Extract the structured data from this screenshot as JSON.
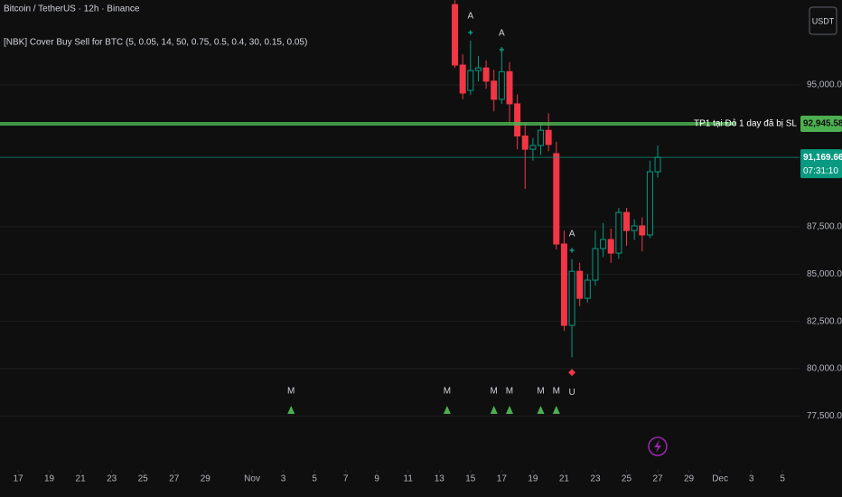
{
  "chart_data": {
    "type": "candlestick",
    "symbol": "Bitcoin / TetherUS · 12h · Binance",
    "indicator": "[NBK] Cover Buy Sell for BTC (5, 0.05, 14, 50, 0.75, 0.5, 0.4, 30, 0.15, 0.05)",
    "currency": "USDT",
    "x": [
      28,
      28.5,
      29,
      29.5,
      30,
      30.5,
      31,
      31.5,
      32,
      32.5,
      33,
      33.5,
      34,
      34.5,
      35,
      35.5,
      36,
      36.5,
      37,
      37.5,
      38,
      38.5,
      39,
      39.5,
      40,
      40.5,
      41
    ],
    "open": [
      99250,
      96050,
      94710,
      95760,
      95900,
      95200,
      94240,
      95700,
      94000,
      92300,
      91600,
      91800,
      92600,
      91370,
      86590,
      82290,
      85150,
      83720,
      84680,
      86350,
      86830,
      86110,
      88260,
      87300,
      87550,
      87070,
      90410
    ],
    "high": [
      99480,
      96620,
      97340,
      96530,
      96300,
      95800,
      97000,
      96200,
      94500,
      93000,
      92200,
      93000,
      93500,
      92000,
      87300,
      85800,
      85600,
      85000,
      87300,
      87700,
      87400,
      88500,
      88500,
      87900,
      88000,
      91000,
      91800
    ],
    "low": [
      95900,
      94240,
      94470,
      95190,
      94800,
      93600,
      94000,
      93000,
      91600,
      89500,
      91000,
      91300,
      91500,
      86300,
      82000,
      80600,
      83300,
      83500,
      84400,
      85900,
      85600,
      85800,
      86500,
      86800,
      86200,
      86900,
      90100
    ],
    "close": [
      96050,
      94570,
      95760,
      95900,
      95200,
      94240,
      95700,
      94000,
      92300,
      91600,
      91800,
      92600,
      91850,
      86590,
      82290,
      85150,
      83720,
      84680,
      86350,
      86830,
      86110,
      88260,
      87300,
      87550,
      87070,
      90410,
      91170
    ],
    "up_color": "#089981",
    "down_color": "#f23645",
    "xlim": [
      -1.16,
      50.09
    ],
    "ylim": [
      74650,
      99490
    ],
    "xticks": [
      {
        "value": 0,
        "label": "17"
      },
      {
        "value": 2,
        "label": "19"
      },
      {
        "value": 4,
        "label": "21"
      },
      {
        "value": 6,
        "label": "23"
      },
      {
        "value": 8,
        "label": "25"
      },
      {
        "value": 10,
        "label": "27"
      },
      {
        "value": 12,
        "label": "29"
      },
      {
        "value": 15,
        "label": "Nov"
      },
      {
        "value": 17,
        "label": "3"
      },
      {
        "value": 19,
        "label": "5"
      },
      {
        "value": 21,
        "label": "7"
      },
      {
        "value": 23,
        "label": "9"
      },
      {
        "value": 25,
        "label": "11"
      },
      {
        "value": 27,
        "label": "13"
      },
      {
        "value": 29,
        "label": "15"
      },
      {
        "value": 31,
        "label": "17"
      },
      {
        "value": 33,
        "label": "19"
      },
      {
        "value": 35,
        "label": "21"
      },
      {
        "value": 37,
        "label": "23"
      },
      {
        "value": 39,
        "label": "25"
      },
      {
        "value": 41,
        "label": "27"
      },
      {
        "value": 43,
        "label": "29"
      },
      {
        "value": 45,
        "label": "Dec"
      },
      {
        "value": 47,
        "label": "3"
      },
      {
        "value": 49,
        "label": "5"
      }
    ],
    "yticks": [
      {
        "value": 95000,
        "label": "95,000.00"
      },
      {
        "value": 87500,
        "label": "87,500.00"
      },
      {
        "value": 85000,
        "label": "85,000.00"
      },
      {
        "value": 82500,
        "label": "82,500.00"
      },
      {
        "value": 80000,
        "label": "80,000.00"
      },
      {
        "value": 77500,
        "label": "77,500.00"
      }
    ],
    "grid": true,
    "price_lines": [
      {
        "value": 92945.58,
        "label": "92,945.58",
        "text": "TP1 tại Đỏ 1 day đã bị SL",
        "color": "#4caf50"
      },
      {
        "value": 91169.66,
        "label": "91,169.66",
        "countdown": "07:31:10",
        "color": "#089981"
      }
    ],
    "buy_markers": {
      "label": "M",
      "color": "#4caf50",
      "x": [
        17.5,
        27.5,
        30.5,
        31.5,
        33.5,
        34.5
      ]
    },
    "alert_markers": {
      "label": "A",
      "color": "#089981",
      "x": [
        29,
        31,
        35.5
      ],
      "y": [
        98630,
        97720,
        87120
      ]
    },
    "sell_markers": {
      "label": "U",
      "color": "#f23645",
      "x": [
        35.5
      ],
      "y": [
        79800
      ]
    }
  }
}
